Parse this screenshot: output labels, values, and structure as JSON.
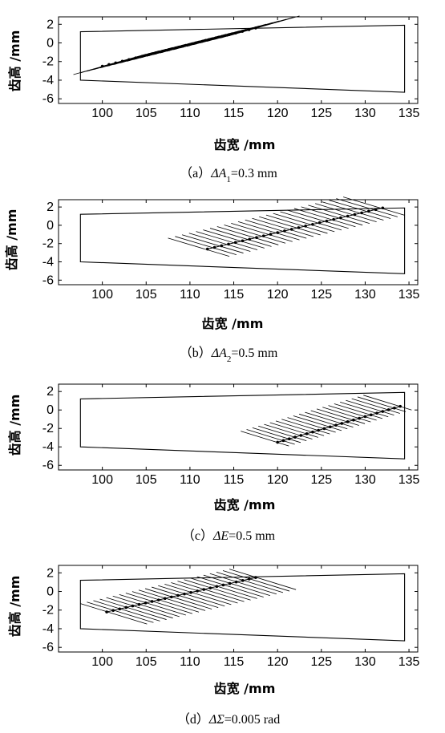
{
  "chart_data": [
    {
      "type": "line",
      "caption": {
        "prefix": "（a）",
        "delta": "Δ",
        "symbol": "A",
        "sub": "1",
        "value": "=0.3 mm"
      },
      "xlabel": "齿宽 /mm",
      "ylabel": "齿高 /mm",
      "xlim": [
        95,
        136
      ],
      "ylim": [
        -6.5,
        2.8
      ],
      "xticks": [
        "100",
        "105",
        "110",
        "115",
        "120",
        "125",
        "130",
        "135"
      ],
      "yticks": [
        "2",
        "0",
        "-2",
        "-4",
        "-6"
      ],
      "boundary": {
        "x": [
          97.5,
          134.5,
          134.5,
          97.5
        ],
        "y": [
          1.2,
          1.9,
          -5.3,
          -4.0
        ]
      },
      "contact_path": {
        "x_start": 100,
        "y_start": -2.5,
        "x_end": 117.5,
        "y_end": 1.6,
        "points": 24
      },
      "contact_lines": {
        "count": 24,
        "dx_left": -3.3,
        "dy_left": -0.9,
        "dx_right": 5.0,
        "dy_right": 1.3
      },
      "series": [
        {
          "values": []
        }
      ]
    },
    {
      "type": "line",
      "caption": {
        "prefix": "（b）",
        "delta": "Δ",
        "symbol": "A",
        "sub": "2",
        "value": "=0.5 mm"
      },
      "xlabel": "齿宽 /mm",
      "ylabel": "齿高 /mm",
      "xlim": [
        95,
        136
      ],
      "ylim": [
        -6.5,
        2.8
      ],
      "xticks": [
        "100",
        "105",
        "110",
        "115",
        "120",
        "125",
        "130",
        "135"
      ],
      "yticks": [
        "2",
        "0",
        "-2",
        "-4",
        "-6"
      ],
      "boundary": {
        "x": [
          97.5,
          134.5,
          134.5,
          97.5
        ],
        "y": [
          1.2,
          1.9,
          -5.3,
          -4.0
        ]
      },
      "contact_path": {
        "x_start": 112,
        "y_start": -2.6,
        "x_end": 132,
        "y_end": 1.9,
        "points": 26
      },
      "contact_lines": {
        "count": 26,
        "dx_left": -4.5,
        "dy_left": 1.2,
        "dx_right": 2.5,
        "dy_right": -0.8
      },
      "series": [
        {
          "values": []
        }
      ]
    },
    {
      "type": "line",
      "caption": {
        "prefix": "（c）",
        "delta": "Δ",
        "symbol": "E",
        "sub": "",
        "value": "=0.5 mm"
      },
      "xlabel": "齿宽 /mm",
      "ylabel": "齿高 /mm",
      "xlim": [
        95,
        136
      ],
      "ylim": [
        -6.5,
        2.8
      ],
      "xticks": [
        "100",
        "105",
        "110",
        "115",
        "120",
        "125",
        "130",
        "135"
      ],
      "yticks": [
        "2",
        "0",
        "-2",
        "-4",
        "-6"
      ],
      "boundary": {
        "x": [
          97.5,
          134.5,
          134.5,
          97.5
        ],
        "y": [
          1.2,
          1.9,
          -5.3,
          -4.0
        ]
      },
      "contact_path": {
        "x_start": 120,
        "y_start": -3.5,
        "x_end": 134,
        "y_end": 0.4,
        "points": 22
      },
      "contact_lines": {
        "count": 22,
        "dx_left": -4.2,
        "dy_left": 1.2,
        "dx_right": 1.3,
        "dy_right": -0.4
      },
      "series": [
        {
          "values": []
        }
      ]
    },
    {
      "type": "line",
      "caption": {
        "prefix": "（d）",
        "delta": "Δ",
        "symbol": "Σ",
        "sub": "",
        "value": "=0.005 rad"
      },
      "xlabel": "齿宽 /mm",
      "ylabel": "齿高 /mm",
      "xlim": [
        95,
        136
      ],
      "ylim": [
        -6.5,
        2.8
      ],
      "xticks": [
        "100",
        "105",
        "110",
        "115",
        "120",
        "125",
        "130",
        "135"
      ],
      "yticks": [
        "2",
        "0",
        "-2",
        "-4",
        "-6"
      ],
      "boundary": {
        "x": [
          97.5,
          134.5,
          134.5,
          97.5
        ],
        "y": [
          1.2,
          1.9,
          -5.3,
          -4.0
        ]
      },
      "contact_path": {
        "x_start": 100.5,
        "y_start": -2.2,
        "x_end": 117.5,
        "y_end": 1.5,
        "points": 24
      },
      "contact_lines": {
        "count": 24,
        "dx_left": -3.0,
        "dy_left": 0.9,
        "dx_right": 4.6,
        "dy_right": -1.3
      },
      "series": [
        {
          "values": []
        }
      ]
    }
  ]
}
